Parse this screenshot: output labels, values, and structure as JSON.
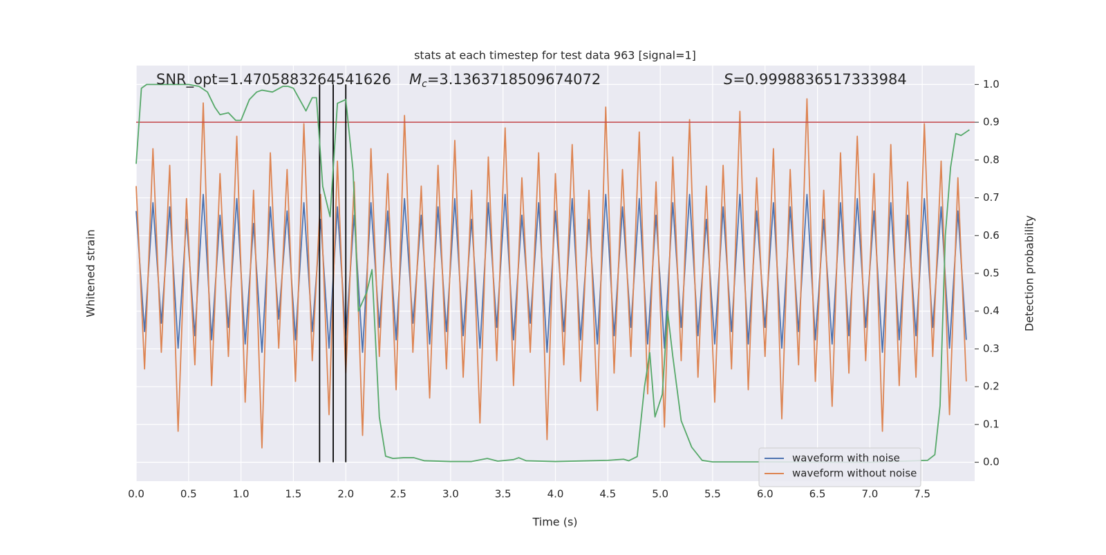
{
  "chart_data": {
    "type": "line",
    "title": "stats at each timestep for test data 963 [signal=1]",
    "xlabel": "Time (s)",
    "ylabel": "Whitened strain",
    "y2label": "Detection probability",
    "annotations": [
      {
        "text": "SNR_opt=1.4705883264541626"
      },
      {
        "symbol": "M",
        "subscript": "c",
        "text": "=3.1363718509674072"
      },
      {
        "symbol": "S",
        "text": "=0.9998836517333984"
      }
    ],
    "xlim": [
      0,
      8.0
    ],
    "xticks": [
      {
        "value": 0,
        "label": "0.0"
      },
      0.5,
      {
        "value": 1,
        "label": "1.0"
      },
      1.5,
      {
        "value": 2,
        "label": "2.0"
      },
      2.5,
      {
        "value": 3,
        "label": "3.0"
      },
      3.5,
      {
        "value": 4,
        "label": "4.0"
      },
      4.5,
      {
        "value": 5,
        "label": "5.0"
      },
      5.5,
      {
        "value": 6,
        "label": "6.0"
      },
      6.5,
      {
        "value": 7,
        "label": "7.0"
      },
      7.5
    ],
    "ylim": [
      -5,
      5
    ],
    "y2lim": [
      -0.05,
      1.05
    ],
    "y2ticks": [
      {
        "value": 0,
        "label": "0.0"
      },
      0.1,
      0.2,
      0.3,
      0.4,
      0.5,
      0.6,
      0.7,
      0.8,
      0.9,
      {
        "value": 1,
        "label": "1.0"
      }
    ],
    "grid": true,
    "legend": "lower right",
    "threshold": {
      "value": 0.9,
      "color": "#c44e52"
    },
    "vlines": {
      "values": [
        1.75,
        1.88,
        2.0
      ],
      "color": "#000000"
    },
    "series": [
      {
        "name": "waveform with noise",
        "color": "#4c72b0",
        "x": [
          0,
          0.08,
          0.16,
          0.24,
          0.32,
          0.4,
          0.48,
          0.56,
          0.64,
          0.72,
          0.8,
          0.88,
          0.96,
          1.04,
          1.12,
          1.2,
          1.28,
          1.36,
          1.44,
          1.52,
          1.6,
          1.68,
          1.76,
          1.84,
          1.92,
          2,
          2.08,
          2.16,
          2.24,
          2.32,
          2.4,
          2.48,
          2.56,
          2.64,
          2.72,
          2.8,
          2.88,
          2.96,
          3.04,
          3.12,
          3.2,
          3.28,
          3.36,
          3.44,
          3.52,
          3.6,
          3.68,
          3.76,
          3.84,
          3.92,
          4,
          4.08,
          4.16,
          4.24,
          4.32,
          4.4,
          4.48,
          4.56,
          4.64,
          4.72,
          4.8,
          4.88,
          4.96,
          5.04,
          5.12,
          5.2,
          5.28,
          5.36,
          5.44,
          5.52,
          5.6,
          5.68,
          5.76,
          5.84,
          5.92,
          6,
          6.08,
          6.16,
          6.24,
          6.32,
          6.4,
          6.48,
          6.56,
          6.64,
          6.72,
          6.8,
          6.88,
          6.96,
          7.04,
          7.12,
          7.2,
          7.28,
          7.36,
          7.44,
          7.52,
          7.6,
          7.68,
          7.76,
          7.84,
          7.92
        ],
        "values": [
          1.5,
          -1.4,
          1.7,
          -1.2,
          1.6,
          -1.8,
          1.3,
          -1.5,
          1.9,
          -1.6,
          1.4,
          -1.3,
          1.8,
          -1.7,
          1.2,
          -1.9,
          1.6,
          -1.1,
          1.5,
          -1.6,
          1.7,
          -1.4,
          1.3,
          -1.8,
          1.6,
          -1.5,
          1.4,
          -1.9,
          1.7,
          -1.3,
          1.5,
          -1.6,
          1.8,
          -1.2,
          1.4,
          -1.7,
          1.6,
          -1.4,
          1.8,
          -1.5,
          1.3,
          -1.8,
          1.7,
          -1.3,
          1.9,
          -1.6,
          1.4,
          -1.2,
          1.7,
          -1.9,
          1.5,
          -1.4,
          1.8,
          -1.6,
          1.3,
          -1.7,
          1.9,
          -1.5,
          1.6,
          -1.3,
          1.8,
          -1.7,
          1.4,
          -1.8,
          1.7,
          -1.3,
          1.9,
          -1.5,
          1.3,
          -1.7,
          1.6,
          -1.4,
          1.9,
          -1.7,
          1.5,
          -1.3,
          1.7,
          -1.8,
          1.6,
          -1.4,
          1.9,
          -1.6,
          1.3,
          -1.7,
          1.7,
          -1.5,
          1.8,
          -1.3,
          1.5,
          -1.9,
          1.7,
          -1.6,
          1.4,
          -1.5,
          1.8,
          -1.3,
          1.6,
          -1.8,
          1.5,
          -1.6
        ]
      },
      {
        "name": "waveform without noise",
        "color": "#dd8452",
        "x": [
          0,
          0.08,
          0.16,
          0.24,
          0.32,
          0.4,
          0.48,
          0.56,
          0.64,
          0.72,
          0.8,
          0.88,
          0.96,
          1.04,
          1.12,
          1.2,
          1.28,
          1.36,
          1.44,
          1.52,
          1.6,
          1.68,
          1.76,
          1.84,
          1.92,
          2,
          2.08,
          2.16,
          2.24,
          2.32,
          2.4,
          2.48,
          2.56,
          2.64,
          2.72,
          2.8,
          2.88,
          2.96,
          3.04,
          3.12,
          3.2,
          3.28,
          3.36,
          3.44,
          3.52,
          3.6,
          3.68,
          3.76,
          3.84,
          3.92,
          4,
          4.08,
          4.16,
          4.24,
          4.32,
          4.4,
          4.48,
          4.56,
          4.64,
          4.72,
          4.8,
          4.88,
          4.96,
          5.04,
          5.12,
          5.2,
          5.28,
          5.36,
          5.44,
          5.52,
          5.6,
          5.68,
          5.76,
          5.84,
          5.92,
          6,
          6.08,
          6.16,
          6.24,
          6.32,
          6.4,
          6.48,
          6.56,
          6.64,
          6.72,
          6.8,
          6.88,
          6.96,
          7.04,
          7.12,
          7.2,
          7.28,
          7.36,
          7.44,
          7.52,
          7.6,
          7.68,
          7.76,
          7.84,
          7.92
        ],
        "values": [
          2.1,
          -2.3,
          3.0,
          -1.9,
          2.6,
          -3.8,
          1.8,
          -2.2,
          4.1,
          -2.7,
          2.4,
          -2.0,
          3.3,
          -3.1,
          2.0,
          -4.2,
          2.9,
          -1.8,
          2.5,
          -2.6,
          3.6,
          -2.1,
          1.9,
          -3.4,
          2.7,
          -2.4,
          2.2,
          -3.9,
          3.0,
          -2.0,
          2.4,
          -2.8,
          3.8,
          -1.9,
          2.1,
          -3.0,
          2.6,
          -2.3,
          3.2,
          -2.5,
          2.0,
          -3.6,
          2.8,
          -2.1,
          3.5,
          -2.7,
          2.3,
          -1.9,
          2.9,
          -4.0,
          2.4,
          -2.2,
          3.1,
          -2.6,
          2.0,
          -3.3,
          4.0,
          -2.4,
          2.5,
          -2.0,
          3.4,
          -2.9,
          2.2,
          -3.7,
          2.8,
          -2.1,
          3.7,
          -2.5,
          2.1,
          -3.1,
          2.6,
          -2.3,
          3.9,
          -2.8,
          2.3,
          -2.0,
          3.0,
          -3.5,
          2.5,
          -2.2,
          4.2,
          -2.6,
          2.0,
          -3.2,
          2.9,
          -2.4,
          3.3,
          -2.1,
          2.4,
          -3.8,
          3.1,
          -2.7,
          2.2,
          -2.5,
          3.6,
          -2.0,
          2.7,
          -3.4,
          2.3,
          -2.6
        ]
      },
      {
        "color": "#55a868",
        "axis": "y2",
        "x": [
          0,
          0.05,
          0.1,
          0.5,
          0.6,
          0.68,
          0.75,
          0.8,
          0.88,
          0.95,
          1.0,
          1.08,
          1.15,
          1.2,
          1.3,
          1.4,
          1.45,
          1.5,
          1.62,
          1.68,
          1.72,
          1.78,
          1.85,
          1.92,
          2.0,
          2.07,
          2.12,
          2.2,
          2.25,
          2.32,
          2.38,
          2.45,
          2.55,
          2.65,
          2.75,
          3.0,
          3.2,
          3.35,
          3.45,
          3.6,
          3.65,
          3.72,
          4.0,
          4.5,
          4.65,
          4.7,
          4.78,
          4.85,
          4.9,
          4.95,
          5.02,
          5.07,
          5.12,
          5.2,
          5.3,
          5.4,
          5.5,
          6.0,
          7.0,
          7.55,
          7.62,
          7.67,
          7.72,
          7.77,
          7.82,
          7.87,
          7.95
        ],
        "values": [
          0.79,
          0.99,
          1.0,
          1.0,
          0.995,
          0.98,
          0.94,
          0.92,
          0.925,
          0.905,
          0.905,
          0.96,
          0.98,
          0.985,
          0.98,
          0.995,
          0.995,
          0.99,
          0.93,
          0.965,
          0.965,
          0.73,
          0.65,
          0.95,
          0.96,
          0.77,
          0.4,
          0.45,
          0.51,
          0.12,
          0.016,
          0.01,
          0.012,
          0.012,
          0.004,
          0.002,
          0.002,
          0.01,
          0.003,
          0.007,
          0.012,
          0.004,
          0.002,
          0.005,
          0.008,
          0.004,
          0.015,
          0.2,
          0.29,
          0.12,
          0.18,
          0.4,
          0.28,
          0.11,
          0.04,
          0.005,
          0.001,
          0.001,
          0.0,
          0.005,
          0.02,
          0.15,
          0.6,
          0.78,
          0.87,
          0.865,
          0.88
        ]
      }
    ]
  }
}
